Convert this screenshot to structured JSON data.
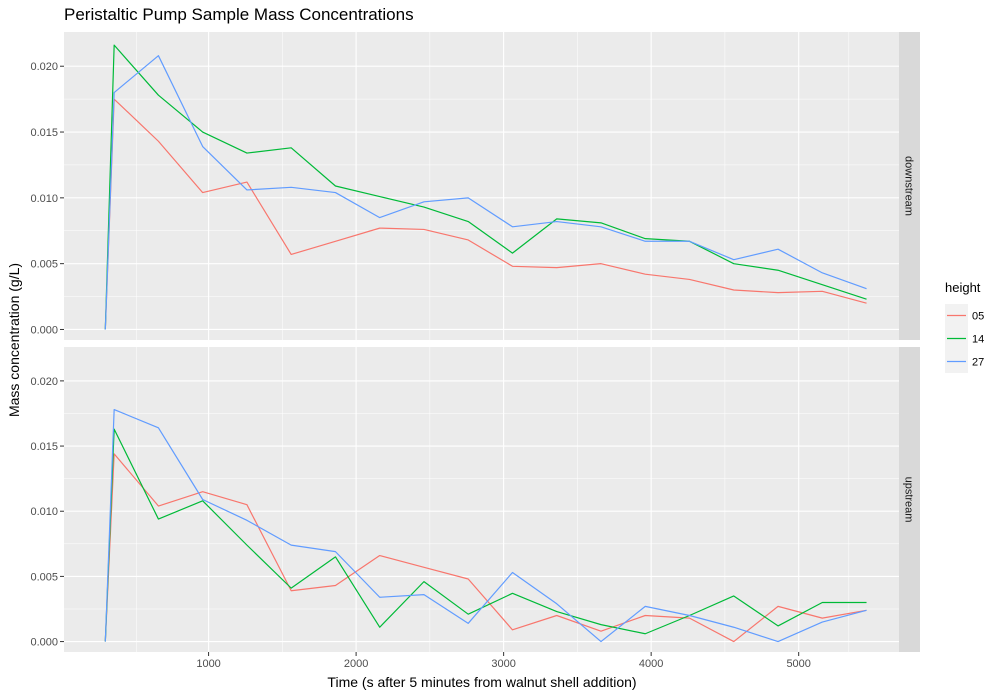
{
  "chart_data": {
    "type": "line",
    "title": "Peristaltic Pump Sample Mass Concentrations",
    "xlabel": "Time (s after 5 minutes from walnut shell addition)",
    "ylabel": "Mass concentration (g/L)",
    "xlim": [
      20,
      5680
    ],
    "ylim": [
      -0.0008,
      0.0226
    ],
    "x_ticks": [
      1000,
      2000,
      3000,
      4000,
      5000
    ],
    "x_tick_labels": [
      "1000",
      "2000",
      "3000",
      "4000",
      "5000"
    ],
    "y_ticks": [
      0.0,
      0.005,
      0.01,
      0.015,
      0.02
    ],
    "y_tick_labels": [
      "0.000",
      "0.005",
      "0.010",
      "0.015",
      "0.020"
    ],
    "grid": true,
    "legend": {
      "title": "height",
      "position": "right",
      "entries": [
        "05",
        "14",
        "27"
      ]
    },
    "colors": {
      "05": "#F8766D",
      "14": "#00BA38",
      "27": "#619CFF"
    },
    "facets": [
      {
        "label": "downstream",
        "series": [
          {
            "name": "05",
            "x": [
              300,
              360,
              660,
              960,
              1260,
              1560,
              1860,
              2160,
              2460,
              2760,
              3060,
              3360,
              3660,
              3960,
              4260,
              4560,
              4860,
              5160,
              5460
            ],
            "y": [
              0.0,
              0.0175,
              0.0143,
              0.0104,
              0.0112,
              0.0057,
              0.0067,
              0.0077,
              0.0076,
              0.0068,
              0.0048,
              0.0047,
              0.005,
              0.0042,
              0.0038,
              0.003,
              0.0028,
              0.0029,
              0.002
            ]
          },
          {
            "name": "14",
            "x": [
              300,
              360,
              660,
              960,
              1260,
              1560,
              1860,
              2160,
              2460,
              2760,
              3060,
              3360,
              3660,
              3960,
              4260,
              4560,
              4860,
              5160,
              5460
            ],
            "y": [
              0.0,
              0.0216,
              0.0178,
              0.015,
              0.0134,
              0.0138,
              0.0109,
              0.0101,
              0.0093,
              0.0082,
              0.0058,
              0.0084,
              0.0081,
              0.0069,
              0.0067,
              0.005,
              0.0045,
              0.0034,
              0.0023
            ]
          },
          {
            "name": "27",
            "x": [
              300,
              360,
              660,
              960,
              1260,
              1560,
              1860,
              2160,
              2460,
              2760,
              3060,
              3360,
              3660,
              3960,
              4260,
              4560,
              4860,
              5160,
              5460
            ],
            "y": [
              0.0,
              0.018,
              0.0208,
              0.0139,
              0.0106,
              0.0108,
              0.0104,
              0.0085,
              0.0097,
              0.01,
              0.0078,
              0.0082,
              0.0078,
              0.0067,
              0.0067,
              0.0053,
              0.0061,
              0.0043,
              0.0031
            ]
          }
        ]
      },
      {
        "label": "upstream",
        "series": [
          {
            "name": "05",
            "x": [
              300,
              360,
              660,
              960,
              1260,
              1560,
              1860,
              2160,
              2460,
              2760,
              3060,
              3360,
              3660,
              3960,
              4260,
              4560,
              4860,
              5160,
              5460
            ],
            "y": [
              0.0,
              0.0144,
              0.0104,
              0.0115,
              0.0105,
              0.0039,
              0.0043,
              0.0066,
              0.0057,
              0.0048,
              0.0009,
              0.002,
              0.0008,
              0.002,
              0.0018,
              0.0,
              0.0027,
              0.0018,
              0.0024
            ]
          },
          {
            "name": "14",
            "x": [
              300,
              360,
              660,
              960,
              1260,
              1560,
              1860,
              2160,
              2460,
              2760,
              3060,
              3360,
              3660,
              3960,
              4260,
              4560,
              4860,
              5160,
              5460
            ],
            "y": [
              0.0,
              0.0163,
              0.0094,
              0.0108,
              0.0074,
              0.0041,
              0.0065,
              0.0011,
              0.0046,
              0.0021,
              0.0037,
              0.0023,
              0.0013,
              0.0006,
              0.002,
              0.0035,
              0.0012,
              0.003,
              0.003
            ]
          },
          {
            "name": "27",
            "x": [
              300,
              360,
              660,
              960,
              1260,
              1560,
              1860,
              2160,
              2460,
              2760,
              3060,
              3360,
              3660,
              3960,
              4260,
              4560,
              4860,
              5160,
              5460
            ],
            "y": [
              0.0,
              0.0178,
              0.0164,
              0.0109,
              0.0093,
              0.0074,
              0.0069,
              0.0034,
              0.0036,
              0.0014,
              0.0053,
              0.0029,
              0.0,
              0.0027,
              0.002,
              0.0011,
              0.0,
              0.0015,
              0.0024
            ]
          }
        ]
      }
    ]
  }
}
